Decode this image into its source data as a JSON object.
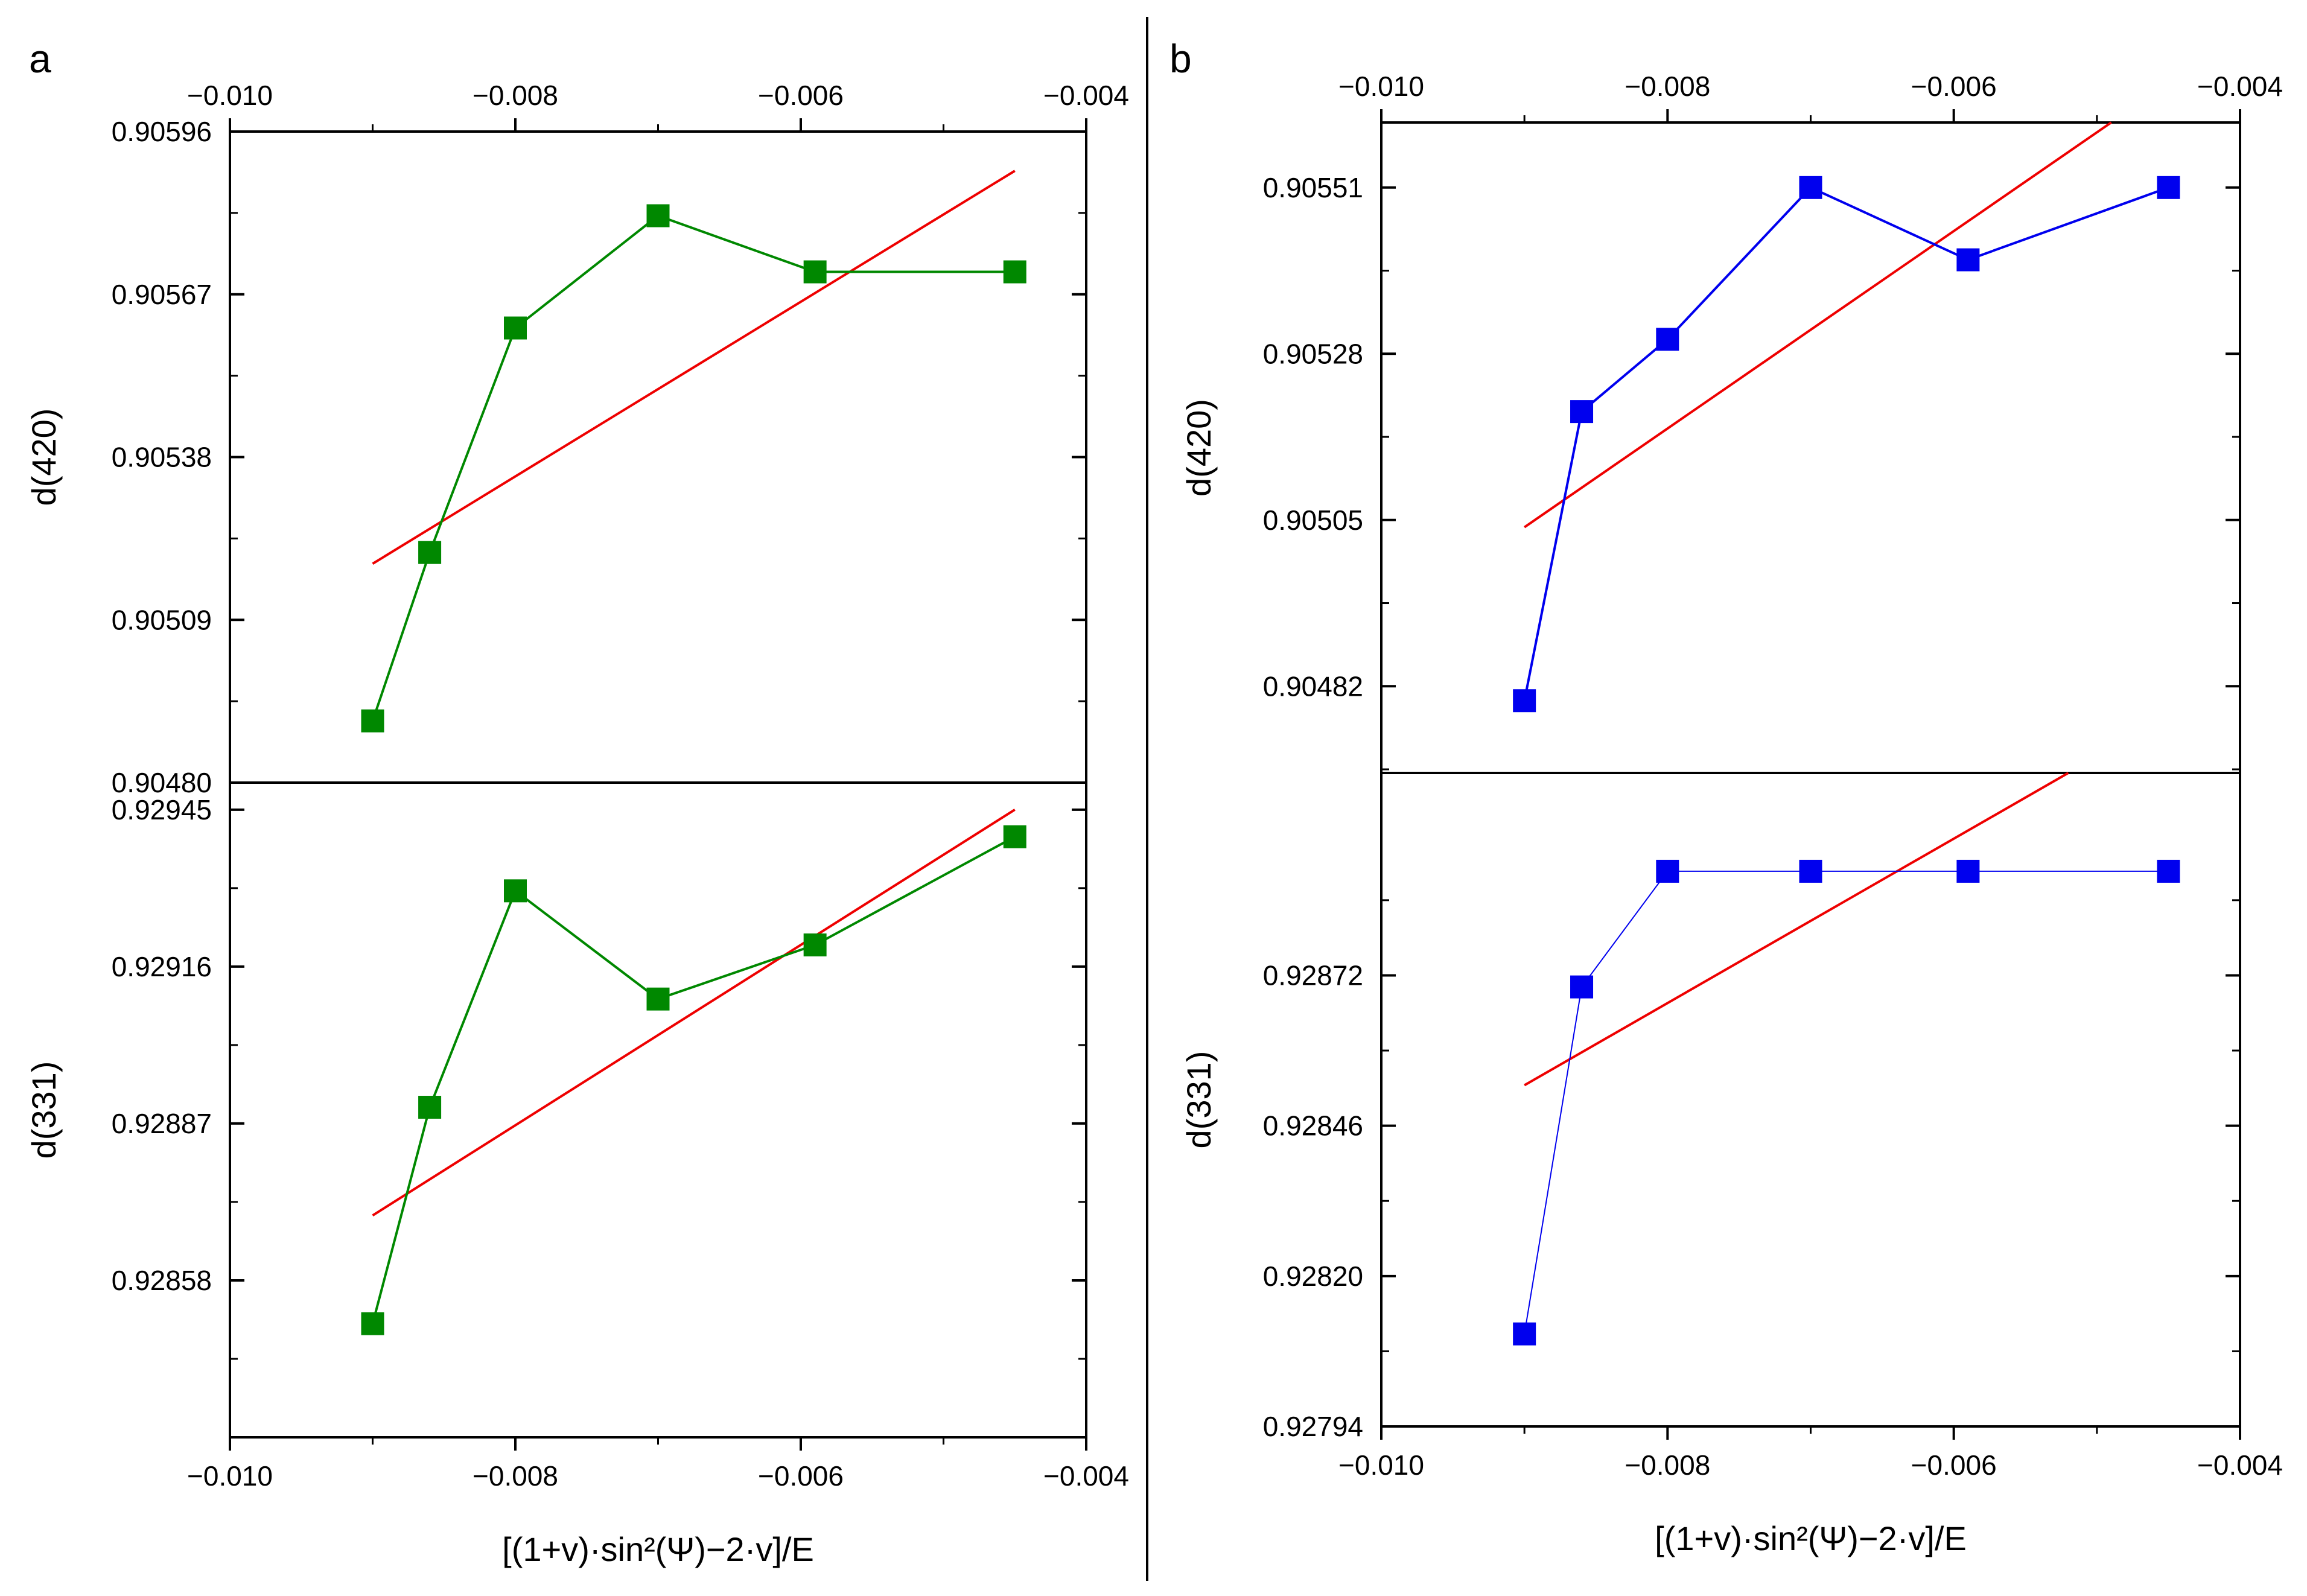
{
  "figure": {
    "xlabel": "[(1+v)·sin²(Ψ)−2·v]/E",
    "xlim": [
      -0.01,
      -0.004
    ],
    "xticks": [
      -0.01,
      -0.008,
      -0.006,
      -0.004
    ],
    "xtick_labels": [
      "−0.010",
      "−0.008",
      "−0.006",
      "−0.004"
    ],
    "fit_color": "#ee0000"
  },
  "chart_data": [
    {
      "panel": "a",
      "position": "top",
      "type": "line",
      "ylabel": "d(420)",
      "color": "#008800",
      "ylim": [
        0.9048,
        0.90596
      ],
      "yticks": [
        "0.90596",
        "0.90567",
        "0.90538",
        "0.90509",
        "0.90480"
      ],
      "x": [
        -0.009,
        -0.0086,
        -0.008,
        -0.007,
        -0.0059,
        -0.0045
      ],
      "y": [
        0.90491,
        0.90521,
        0.90561,
        0.90581,
        0.90571,
        0.90571
      ],
      "fit": {
        "x": [
          -0.009,
          -0.0045
        ],
        "y": [
          0.90519,
          0.90589
        ]
      }
    },
    {
      "panel": "a",
      "position": "bottom",
      "type": "line",
      "ylabel": "d(331)",
      "color": "#008800",
      "ylim": [
        0.92829,
        0.9295
      ],
      "yticks": [
        "0.92945",
        "0.92916",
        "0.92887",
        "0.92858"
      ],
      "x": [
        -0.009,
        -0.0086,
        -0.008,
        -0.007,
        -0.0059,
        -0.0045
      ],
      "y": [
        0.9285,
        0.9289,
        0.9293,
        0.9291,
        0.9292,
        0.9294
      ],
      "fit": {
        "x": [
          -0.009,
          -0.0045
        ],
        "y": [
          0.9287,
          0.92945
        ]
      }
    },
    {
      "panel": "b",
      "position": "top",
      "type": "line",
      "ylabel": "d(420)",
      "color": "#0000ee",
      "ylim": [
        0.9047,
        0.9056
      ],
      "yticks": [
        "0.90551",
        "0.90528",
        "0.90505",
        "0.90482"
      ],
      "x": [
        -0.009,
        -0.0086,
        -0.008,
        -0.007,
        -0.0059,
        -0.0045
      ],
      "y": [
        0.9048,
        0.9052,
        0.9053,
        0.90551,
        0.90541,
        0.90551
      ],
      "fit": {
        "x": [
          -0.009,
          -0.0049
        ],
        "y": [
          0.90504,
          0.9056
        ]
      }
    },
    {
      "panel": "b",
      "position": "bottom",
      "type": "line",
      "ylabel": "d(331)",
      "color": "#0000ee",
      "ylim": [
        0.92794,
        0.92907
      ],
      "yticks": [
        "0.92872",
        "0.92846",
        "0.92820",
        "0.92794"
      ],
      "x": [
        -0.009,
        -0.0086,
        -0.008,
        -0.007,
        -0.0059,
        -0.0045
      ],
      "y": [
        0.9281,
        0.9287,
        0.9289,
        0.9289,
        0.9289,
        0.9289
      ],
      "fit": {
        "x": [
          -0.009,
          -0.0052
        ],
        "y": [
          0.92853,
          0.92907
        ]
      }
    }
  ]
}
